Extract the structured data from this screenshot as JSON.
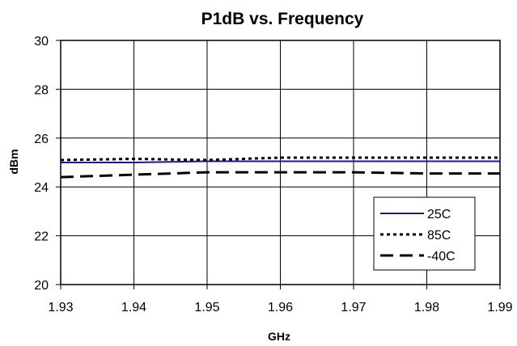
{
  "chart_data": {
    "type": "line",
    "title": "P1dB vs. Frequency",
    "xlabel": "GHz",
    "ylabel": "dBm",
    "xlim": [
      1.93,
      1.99
    ],
    "ylim": [
      20,
      30
    ],
    "x_ticks": [
      "1.93",
      "1.94",
      "1.95",
      "1.96",
      "1.97",
      "1.98",
      "1.99"
    ],
    "y_ticks": [
      "20",
      "22",
      "24",
      "26",
      "28",
      "30"
    ],
    "grid": true,
    "legend_position": "bottom-right",
    "series": [
      {
        "name": "25C",
        "color": "#1a1a8c",
        "style": "solid",
        "x": [
          1.93,
          1.94,
          1.95,
          1.96,
          1.97,
          1.98,
          1.99
        ],
        "values": [
          25.0,
          25.0,
          25.05,
          25.05,
          25.05,
          25.05,
          25.05
        ]
      },
      {
        "name": "85C",
        "color": "#000000",
        "style": "dotted",
        "x": [
          1.93,
          1.94,
          1.95,
          1.96,
          1.97,
          1.98,
          1.99
        ],
        "values": [
          25.1,
          25.15,
          25.1,
          25.2,
          25.2,
          25.2,
          25.2
        ]
      },
      {
        "name": "-40C",
        "color": "#000000",
        "style": "dashed",
        "x": [
          1.93,
          1.94,
          1.95,
          1.96,
          1.97,
          1.98,
          1.99
        ],
        "values": [
          24.4,
          24.5,
          24.6,
          24.6,
          24.6,
          24.55,
          24.55
        ]
      }
    ]
  }
}
